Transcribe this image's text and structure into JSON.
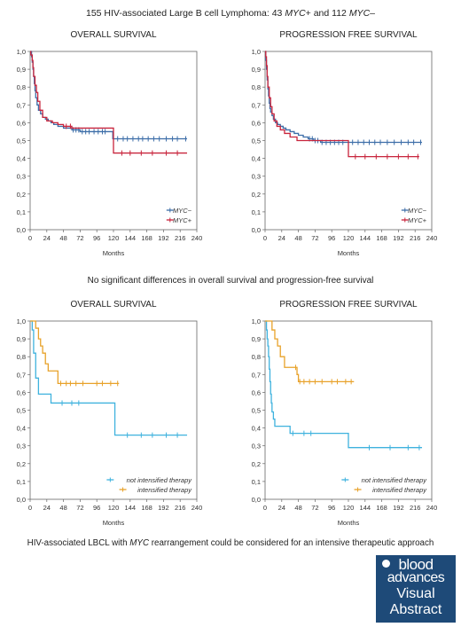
{
  "header": {
    "title_pre": "155 HIV-associated Large B cell Lymphoma: 43 ",
    "title_myc1": "MYC",
    "title_mid": "+ and 112 ",
    "title_myc2": "MYC",
    "title_post": "–"
  },
  "middle_text": "No significant differences in overall survival and progression-free survival",
  "bottom": {
    "pre": "HIV-associated LBCL with ",
    "myc": "MYC",
    "post": " rearrangement could be considered for an intensive therapeutic approach"
  },
  "logo": {
    "line1": "blood",
    "line2": "advances",
    "line3": "Visual",
    "line4": "Abstract"
  },
  "colors": {
    "blue": "#3d6ea8",
    "red": "#c8243c",
    "cyan": "#3fb2de",
    "orange": "#e8a22a"
  },
  "chart_data": [
    {
      "type": "line",
      "title": "OVERALL SURVIVAL",
      "xlabel": "Months",
      "xticks": [
        "0",
        "24",
        "48",
        "72",
        "96",
        "120",
        "144",
        "168",
        "192",
        "216",
        "240"
      ],
      "yticks": [
        "0,0",
        "0,1",
        "0,2",
        "0,3",
        "0,4",
        "0,5",
        "0,6",
        "0,7",
        "0,8",
        "0,9",
        "1,0"
      ],
      "xlim": [
        0,
        240
      ],
      "ylim": [
        0,
        1
      ],
      "legend": "bottom-right",
      "series": [
        {
          "name": "MYC−",
          "color": "#3d6ea8",
          "x": [
            0,
            2,
            3,
            4,
            5,
            6,
            7,
            8,
            10,
            12,
            15,
            18,
            22,
            26,
            30,
            34,
            40,
            48,
            60,
            72,
            96,
            115,
            119,
            124,
            226
          ],
          "y": [
            1,
            0.97,
            0.94,
            0.9,
            0.86,
            0.82,
            0.78,
            0.74,
            0.7,
            0.67,
            0.65,
            0.63,
            0.62,
            0.61,
            0.6,
            0.59,
            0.58,
            0.57,
            0.56,
            0.55,
            0.55,
            0.55,
            0.51,
            0.51,
            0.51
          ],
          "censor_x": [
            62,
            66,
            70,
            75,
            80,
            85,
            92,
            98,
            104,
            108,
            126,
            134,
            140,
            148,
            156,
            162,
            170,
            178,
            186,
            196,
            205,
            212,
            224
          ]
        },
        {
          "name": "MYC+",
          "color": "#c8243c",
          "x": [
            0,
            1,
            3,
            4,
            5,
            7,
            9,
            11,
            14,
            18,
            24,
            32,
            40,
            48,
            60,
            75,
            90,
            108,
            118,
            120,
            226
          ],
          "y": [
            1,
            0.98,
            0.95,
            0.91,
            0.86,
            0.81,
            0.77,
            0.72,
            0.67,
            0.63,
            0.61,
            0.6,
            0.59,
            0.58,
            0.57,
            0.57,
            0.57,
            0.57,
            0.57,
            0.43,
            0.43
          ],
          "censor_x": [
            52,
            58,
            132,
            144,
            160,
            176,
            196,
            212
          ]
        }
      ]
    },
    {
      "type": "line",
      "title": "PROGRESSION FREE SURVIVAL",
      "xlabel": "Months",
      "xticks": [
        "0",
        "24",
        "48",
        "72",
        "96",
        "120",
        "144",
        "168",
        "192",
        "216",
        "240"
      ],
      "yticks": [
        "0,0",
        "0,1",
        "0,2",
        "0,3",
        "0,4",
        "0,5",
        "0,6",
        "0,7",
        "0,8",
        "0,9",
        "1,0"
      ],
      "xlim": [
        0,
        240
      ],
      "ylim": [
        0,
        1
      ],
      "legend": "bottom-right",
      "series": [
        {
          "name": "MYC−",
          "color": "#3d6ea8",
          "x": [
            0,
            1,
            2,
            3,
            4,
            5,
            6,
            7,
            8,
            10,
            12,
            15,
            18,
            22,
            26,
            30,
            36,
            42,
            48,
            55,
            62,
            70,
            80,
            226
          ],
          "y": [
            1,
            0.95,
            0.9,
            0.84,
            0.79,
            0.75,
            0.71,
            0.68,
            0.66,
            0.64,
            0.62,
            0.6,
            0.59,
            0.58,
            0.57,
            0.56,
            0.55,
            0.54,
            0.53,
            0.52,
            0.51,
            0.5,
            0.49,
            0.49
          ],
          "censor_x": [
            64,
            68,
            72,
            76,
            82,
            88,
            94,
            100,
            106,
            112,
            126,
            134,
            142,
            150,
            158,
            166,
            176,
            186,
            196,
            206,
            214,
            224
          ]
        },
        {
          "name": "MYC+",
          "color": "#c8243c",
          "x": [
            0,
            1,
            2,
            3,
            4,
            6,
            8,
            10,
            13,
            17,
            22,
            28,
            36,
            46,
            60,
            90,
            118,
            120,
            222
          ],
          "y": [
            1,
            0.97,
            0.92,
            0.86,
            0.8,
            0.74,
            0.69,
            0.65,
            0.61,
            0.58,
            0.56,
            0.54,
            0.52,
            0.5,
            0.5,
            0.5,
            0.5,
            0.41,
            0.41
          ],
          "censor_x": [
            130,
            144,
            160,
            176,
            192,
            206,
            220
          ]
        }
      ]
    },
    {
      "type": "line",
      "title": "OVERALL SURVIVAL",
      "xlabel": "Months",
      "xticks": [
        "0",
        "24",
        "48",
        "72",
        "96",
        "120",
        "144",
        "168",
        "192",
        "216",
        "240"
      ],
      "yticks": [
        "0,0",
        "0,1",
        "0,2",
        "0,3",
        "0,4",
        "0,5",
        "0,6",
        "0,7",
        "0,8",
        "0,9",
        "1,0"
      ],
      "xlim": [
        0,
        240
      ],
      "ylim": [
        0,
        1
      ],
      "legend": "bottom-right",
      "series": [
        {
          "name": "not intensified therapy",
          "color": "#3fb2de",
          "x": [
            0,
            3,
            5,
            8,
            12,
            22,
            30,
            40,
            60,
            80,
            100,
            118,
            122,
            226
          ],
          "y": [
            1,
            0.95,
            0.82,
            0.68,
            0.59,
            0.59,
            0.54,
            0.54,
            0.54,
            0.54,
            0.54,
            0.54,
            0.36,
            0.36
          ],
          "censor_x": [
            46,
            60,
            70,
            140,
            160,
            176,
            196,
            212
          ]
        },
        {
          "name": "intensified therapy",
          "color": "#e8a22a",
          "x": [
            0,
            6,
            8,
            12,
            15,
            18,
            22,
            26,
            34,
            40,
            50,
            80,
            128
          ],
          "y": [
            1,
            1,
            0.96,
            0.9,
            0.86,
            0.82,
            0.76,
            0.72,
            0.72,
            0.65,
            0.65,
            0.65,
            0.65
          ],
          "censor_x": [
            44,
            52,
            58,
            66,
            76,
            96,
            104,
            116,
            126
          ]
        }
      ]
    },
    {
      "type": "line",
      "title": "PROGRESSION FREE SURVIVAL",
      "xlabel": "Months",
      "xticks": [
        "0",
        "24",
        "48",
        "72",
        "96",
        "120",
        "144",
        "168",
        "192",
        "216",
        "240"
      ],
      "yticks": [
        "0,0",
        "0,1",
        "0,2",
        "0,3",
        "0,4",
        "0,5",
        "0,6",
        "0,7",
        "0,8",
        "0,9",
        "1,0"
      ],
      "xlim": [
        0,
        240
      ],
      "ylim": [
        0,
        1
      ],
      "legend": "bottom-right",
      "series": [
        {
          "name": "not intensified therapy",
          "color": "#3fb2de",
          "x": [
            0,
            2,
            3,
            4,
            5,
            6,
            7,
            8,
            9,
            10,
            12,
            14,
            18,
            26,
            36,
            48,
            70,
            96,
            118,
            120,
            226
          ],
          "y": [
            1,
            0.95,
            0.9,
            0.86,
            0.8,
            0.73,
            0.66,
            0.59,
            0.54,
            0.49,
            0.45,
            0.41,
            0.41,
            0.41,
            0.37,
            0.37,
            0.37,
            0.37,
            0.37,
            0.29,
            0.29
          ],
          "censor_x": [
            40,
            56,
            66,
            150,
            180,
            206,
            222
          ]
        },
        {
          "name": "intensified therapy",
          "color": "#e8a22a",
          "x": [
            0,
            8,
            10,
            14,
            18,
            22,
            28,
            38,
            46,
            48,
            60,
            90,
            128
          ],
          "y": [
            1,
            1,
            0.95,
            0.9,
            0.86,
            0.8,
            0.74,
            0.74,
            0.7,
            0.66,
            0.66,
            0.66,
            0.66
          ],
          "censor_x": [
            44,
            50,
            56,
            64,
            72,
            82,
            96,
            104,
            116,
            124
          ]
        }
      ]
    }
  ]
}
